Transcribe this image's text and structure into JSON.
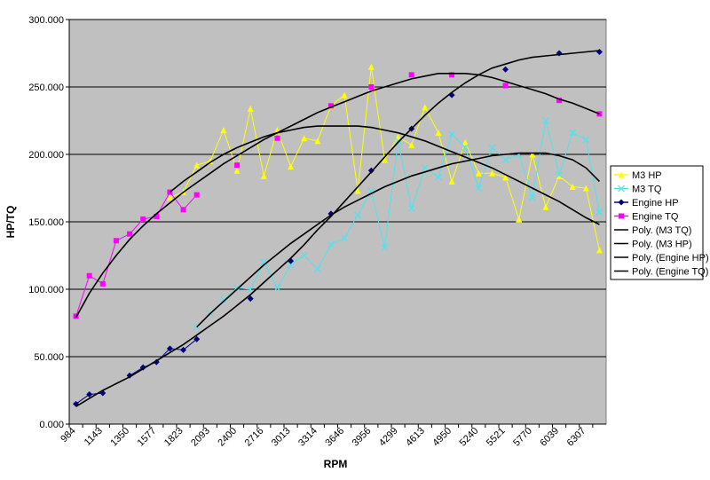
{
  "chart_data": {
    "type": "line",
    "xlabel": "RPM",
    "ylabel": "HP/TQ",
    "categories": [
      "984",
      null,
      "1143",
      null,
      "1350",
      null,
      "1577",
      null,
      "1823",
      null,
      "2093",
      null,
      "2400",
      null,
      "2716",
      null,
      "3013",
      null,
      "3314",
      null,
      "3646",
      null,
      "3956",
      null,
      "4299",
      null,
      "4613",
      null,
      "4950",
      null,
      "5240",
      null,
      "5521",
      null,
      "5770",
      null,
      "6039",
      null,
      "6307",
      null
    ],
    "ylim": [
      0,
      300
    ],
    "yticks": [
      {
        "value": 0,
        "label": "0.000"
      },
      {
        "value": 50,
        "label": "50.000"
      },
      {
        "value": 100,
        "label": "100.000"
      },
      {
        "value": 150,
        "label": "150.000"
      },
      {
        "value": 200,
        "label": "200.000"
      },
      {
        "value": 250,
        "label": "250.000"
      },
      {
        "value": 300,
        "label": "300.000"
      }
    ],
    "grid": true,
    "background": "#c0c0c0",
    "legend": "right",
    "series": [
      {
        "name": "M3 HP",
        "color": "#ffff00",
        "marker": "triangle",
        "values": [
          null,
          null,
          null,
          null,
          null,
          null,
          null,
          168,
          172,
          192,
          195,
          218,
          188,
          234,
          184,
          218,
          191,
          212,
          210,
          236,
          244,
          173,
          265,
          196,
          213,
          207,
          235,
          216,
          180,
          209,
          186,
          186,
          183,
          152,
          200,
          161,
          184,
          176,
          175,
          129
        ]
      },
      {
        "name": "M3 TQ",
        "color": "#4fe3ee",
        "marker": "x",
        "values": [
          null,
          null,
          null,
          null,
          null,
          null,
          null,
          null,
          null,
          72,
          82,
          92,
          101,
          100,
          120,
          101,
          118,
          125,
          115,
          133,
          138,
          155,
          173,
          131,
          210,
          160,
          190,
          183,
          215,
          205,
          175,
          205,
          196,
          200,
          168,
          225,
          185,
          216,
          211,
          157
        ]
      },
      {
        "name": "Engine HP",
        "color": "#000080",
        "marker": "diamond",
        "values": [
          15,
          22,
          23,
          null,
          36,
          42,
          46,
          56,
          55,
          63,
          null,
          null,
          null,
          93,
          null,
          null,
          121,
          null,
          null,
          156,
          null,
          null,
          188,
          null,
          null,
          219,
          null,
          null,
          244,
          null,
          null,
          null,
          263,
          null,
          null,
          null,
          275,
          null,
          null,
          276
        ]
      },
      {
        "name": "Engine TQ",
        "color": "#ff00ff",
        "marker": "square",
        "values": [
          80,
          110,
          104,
          136,
          141,
          152,
          154,
          172,
          159,
          170,
          null,
          null,
          192,
          null,
          null,
          212,
          null,
          null,
          null,
          236,
          null,
          null,
          250,
          null,
          null,
          259,
          null,
          null,
          259,
          null,
          null,
          null,
          251,
          null,
          null,
          null,
          240,
          null,
          null,
          230
        ]
      },
      {
        "name": "Poly. (M3 TQ)",
        "color": "#000000",
        "marker": "none",
        "values": [
          null,
          null,
          null,
          null,
          null,
          null,
          null,
          null,
          null,
          72,
          82,
          91,
          100,
          109,
          118,
          126,
          134,
          141,
          148,
          155,
          161,
          166,
          171,
          176,
          180,
          184,
          187,
          190,
          193,
          195,
          197,
          199,
          200,
          201,
          201,
          201,
          199,
          196,
          190,
          180
        ]
      },
      {
        "name": "Poly. (M3 HP)",
        "color": "#000000",
        "marker": "none",
        "values": [
          null,
          null,
          null,
          null,
          null,
          null,
          null,
          172,
          180,
          187,
          194,
          200,
          205,
          209,
          213,
          216,
          218,
          220,
          221,
          221,
          221,
          221,
          220,
          218,
          216,
          213,
          210,
          206,
          202,
          198,
          194,
          190,
          185,
          180,
          175,
          170,
          165,
          159,
          153,
          148
        ]
      },
      {
        "name": "Poly. (Engine HP)",
        "color": "#000000",
        "marker": "none",
        "values": [
          13,
          19,
          25,
          30,
          35,
          41,
          47,
          53,
          59,
          66,
          73,
          80,
          88,
          96,
          105,
          114,
          123,
          133,
          144,
          154,
          165,
          176,
          187,
          198,
          209,
          219,
          229,
          238,
          246,
          253,
          259,
          264,
          267,
          270,
          272,
          273,
          274,
          275,
          276,
          277
        ]
      },
      {
        "name": "Poly. (Engine TQ)",
        "color": "#000000",
        "marker": "none",
        "values": [
          79,
          97,
          112,
          125,
          137,
          147,
          156,
          164,
          172,
          179,
          186,
          193,
          199,
          205,
          211,
          216,
          221,
          226,
          231,
          235,
          239,
          243,
          247,
          250,
          253,
          256,
          258,
          260,
          260,
          260,
          259,
          257,
          254,
          251,
          248,
          245,
          241,
          238,
          234,
          230
        ]
      }
    ]
  }
}
